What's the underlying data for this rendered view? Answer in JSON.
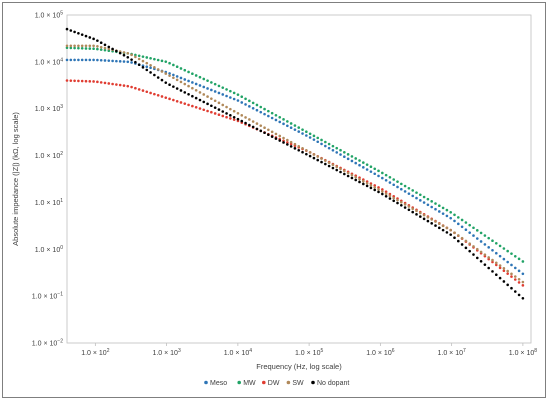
{
  "chart_data": {
    "type": "scatter",
    "title": "",
    "xlabel": "Frequency (Hz, log scale)",
    "ylabel": "Absolute impedance (|Z|) (kΩ, log scale)",
    "x_scale": "log",
    "y_scale": "log",
    "xlim": [
      40,
      130000000
    ],
    "ylim": [
      0.01,
      100000
    ],
    "grid": false,
    "legend_position": "bottom",
    "x_ticks": [
      {
        "value": 100,
        "mantissa": "1.0 × 10",
        "exp": "2"
      },
      {
        "value": 1000,
        "mantissa": "1.0 × 10",
        "exp": "3"
      },
      {
        "value": 10000,
        "mantissa": "1.0 × 10",
        "exp": "4"
      },
      {
        "value": 100000,
        "mantissa": "1.0 × 10",
        "exp": "5"
      },
      {
        "value": 1000000,
        "mantissa": "1.0 × 10",
        "exp": "6"
      },
      {
        "value": 10000000,
        "mantissa": "1.0 × 10",
        "exp": "7"
      },
      {
        "value": 100000000,
        "mantissa": "1.0 × 10",
        "exp": "8"
      }
    ],
    "y_ticks": [
      {
        "value": 100000,
        "mantissa": "1.0 × 10",
        "exp": "5"
      },
      {
        "value": 10000,
        "mantissa": "1.0 × 10",
        "exp": "4"
      },
      {
        "value": 1000,
        "mantissa": "1.0 × 10",
        "exp": "3"
      },
      {
        "value": 100,
        "mantissa": "1.0 × 10",
        "exp": "2"
      },
      {
        "value": 10,
        "mantissa": "1.0 × 10",
        "exp": "1"
      },
      {
        "value": 1,
        "mantissa": "1.0 × 10",
        "exp": "0"
      },
      {
        "value": 0.1,
        "mantissa": "1.0 × 10",
        "exp": "−1"
      },
      {
        "value": 0.01,
        "mantissa": "1.0 × 10",
        "exp": "−2"
      }
    ],
    "series": [
      {
        "name": "Meso",
        "color": "#2e75b6",
        "x": [
          40,
          100,
          300,
          1000,
          10000,
          100000,
          1000000,
          10000000,
          100000000
        ],
        "y": [
          11000,
          11000,
          10000,
          6000,
          1500,
          250,
          35,
          4.5,
          0.3
        ]
      },
      {
        "name": "MW",
        "color": "#21a366",
        "x": [
          40,
          100,
          300,
          1000,
          10000,
          100000,
          1000000,
          10000000,
          100000000
        ],
        "y": [
          20000,
          19000,
          15000,
          10000,
          2000,
          300,
          45,
          6,
          0.55
        ]
      },
      {
        "name": "DW",
        "color": "#e03c31",
        "x": [
          40,
          100,
          300,
          1000,
          3000,
          10000,
          100000,
          1000000,
          10000000,
          100000000
        ],
        "y": [
          4000,
          3800,
          3000,
          1700,
          1000,
          550,
          120,
          20,
          2.5,
          0.17
        ]
      },
      {
        "name": "SW",
        "color": "#b0895a",
        "x": [
          40,
          100,
          300,
          1000,
          10000,
          100000,
          1000000,
          10000000,
          100000000
        ],
        "y": [
          22000,
          22000,
          15000,
          5500,
          800,
          120,
          18,
          2.5,
          0.2
        ]
      },
      {
        "name": "No dopant",
        "color": "#000000",
        "x": [
          40,
          100,
          300,
          1000,
          10000,
          100000,
          1000000,
          10000000,
          100000000
        ],
        "y": [
          50000,
          30000,
          12000,
          3500,
          600,
          100,
          16,
          2,
          0.09
        ]
      }
    ]
  }
}
